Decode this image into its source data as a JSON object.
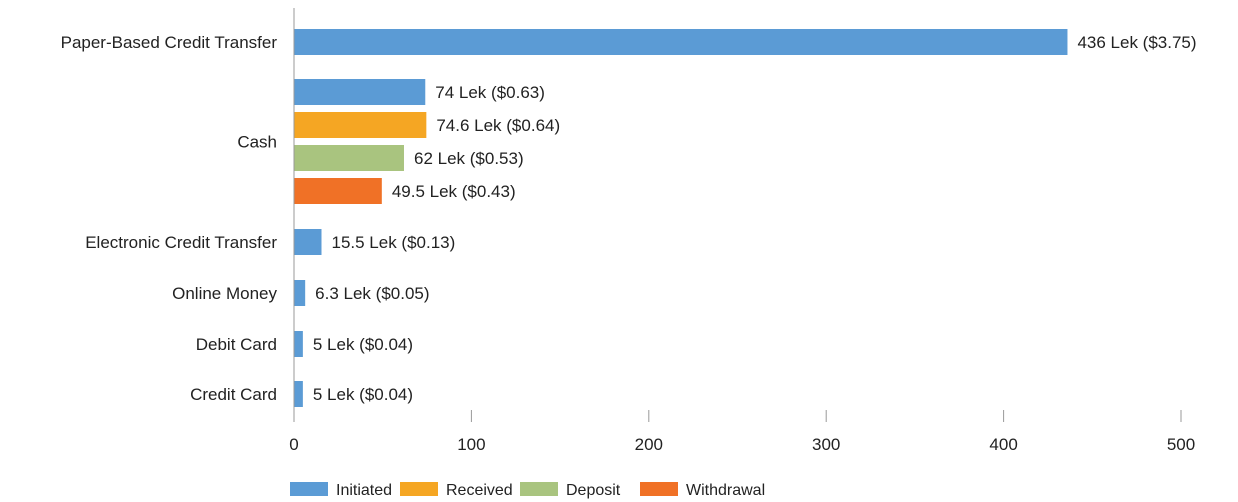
{
  "chart_data": {
    "type": "bar",
    "orientation": "horizontal",
    "title": "",
    "xlabel": "",
    "ylabel": "",
    "xlim": [
      0,
      500
    ],
    "xticks": [
      0,
      100,
      200,
      300,
      400,
      500
    ],
    "grid": false,
    "legend_position": "bottom",
    "colors": {
      "Initiated": "#5B9BD5",
      "Received": "#F5A623",
      "Deposit": "#A9C47F",
      "Withdrawal": "#F07126"
    },
    "series_names": [
      "Initiated",
      "Received",
      "Deposit",
      "Withdrawal"
    ],
    "categories": [
      {
        "name": "Paper-Based Credit Transfer",
        "bars": [
          {
            "series": "Initiated",
            "value": 436,
            "label": "436 Lek ($3.75)"
          }
        ]
      },
      {
        "name": "Cash",
        "bars": [
          {
            "series": "Initiated",
            "value": 74,
            "label": "74 Lek ($0.63)"
          },
          {
            "series": "Received",
            "value": 74.6,
            "label": "74.6 Lek ($0.64)"
          },
          {
            "series": "Deposit",
            "value": 62,
            "label": "62 Lek ($0.53)"
          },
          {
            "series": "Withdrawal",
            "value": 49.5,
            "label": "49.5 Lek ($0.43)"
          }
        ]
      },
      {
        "name": "Electronic Credit Transfer",
        "bars": [
          {
            "series": "Initiated",
            "value": 15.5,
            "label": "15.5 Lek ($0.13)"
          }
        ]
      },
      {
        "name": "Online Money",
        "bars": [
          {
            "series": "Initiated",
            "value": 6.3,
            "label": "6.3 Lek ($0.05)"
          }
        ]
      },
      {
        "name": "Debit Card",
        "bars": [
          {
            "series": "Initiated",
            "value": 5,
            "label": "5 Lek ($0.04)"
          }
        ]
      },
      {
        "name": "Credit Card",
        "bars": [
          {
            "series": "Initiated",
            "value": 5,
            "label": "5 Lek ($0.04)"
          }
        ]
      }
    ]
  }
}
